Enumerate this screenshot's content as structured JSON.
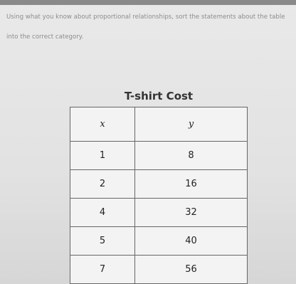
{
  "instructions": "Using what you know about proportional relationships, sort the statements about the table into the correct category.",
  "table": {
    "title": "T-shirt Cost",
    "header": [
      "x",
      "y"
    ],
    "rows": [
      [
        1,
        8
      ],
      [
        2,
        16
      ],
      [
        4,
        32
      ],
      [
        5,
        40
      ],
      [
        7,
        56
      ]
    ]
  }
}
